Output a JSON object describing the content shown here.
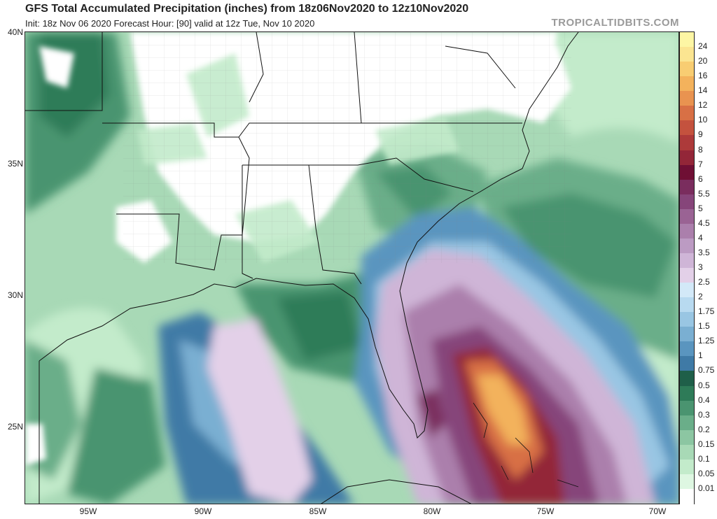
{
  "header": {
    "title": "GFS Total Accumulated Precipitation (inches) from 18z06Nov2020 to 12z10Nov2020",
    "subtitle": "Init: 18z Nov 06 2020   Forecast Hour: [90]   valid at 12z Tue, Nov 10 2020",
    "brand": "TROPICALTIDBITS.COM"
  },
  "axes": {
    "lat_labels": [
      "40N",
      "35N",
      "30N",
      "25N"
    ],
    "lon_labels": [
      "95W",
      "90W",
      "85W",
      "80W",
      "75W",
      "70W"
    ]
  },
  "colorbar": [
    {
      "label": "24",
      "color": "#fdf6a4"
    },
    {
      "label": "20",
      "color": "#fbe591"
    },
    {
      "label": "16",
      "color": "#f8cd72"
    },
    {
      "label": "14",
      "color": "#f3b25c"
    },
    {
      "label": "12",
      "color": "#e99350"
    },
    {
      "label": "10",
      "color": "#d87045"
    },
    {
      "label": "9",
      "color": "#c4523e"
    },
    {
      "label": "8",
      "color": "#ad3a3a"
    },
    {
      "label": "7",
      "color": "#932638"
    },
    {
      "label": "6",
      "color": "#6f0f34"
    },
    {
      "label": "5.5",
      "color": "#7a2d5e"
    },
    {
      "label": "5",
      "color": "#86457a"
    },
    {
      "label": "4.5",
      "color": "#9a6394"
    },
    {
      "label": "4",
      "color": "#ab7fac"
    },
    {
      "label": "3.5",
      "color": "#bc9bc3"
    },
    {
      "label": "3",
      "color": "#cfb5d7"
    },
    {
      "label": "2.5",
      "color": "#e3d0e8"
    },
    {
      "label": "2",
      "color": "#d3e9f8"
    },
    {
      "label": "1.75",
      "color": "#b8daf0"
    },
    {
      "label": "1.5",
      "color": "#99c6e3"
    },
    {
      "label": "1.25",
      "color": "#7aafd2"
    },
    {
      "label": "1",
      "color": "#5a95bf"
    },
    {
      "label": "0.75",
      "color": "#3f7aa6"
    },
    {
      "label": "0.5",
      "color": "#1f5f49"
    },
    {
      "label": "0.4",
      "color": "#2e7b58"
    },
    {
      "label": "0.3",
      "color": "#4a9470"
    },
    {
      "label": "0.2",
      "color": "#6aae89"
    },
    {
      "label": "0.15",
      "color": "#8cc6a2"
    },
    {
      "label": "0.1",
      "color": "#a8d9b6"
    },
    {
      "label": "0.05",
      "color": "#c3ebcb"
    },
    {
      "label": "0.01",
      "color": "#def7e2"
    },
    {
      "label": "",
      "color": "#ffffff"
    }
  ]
}
